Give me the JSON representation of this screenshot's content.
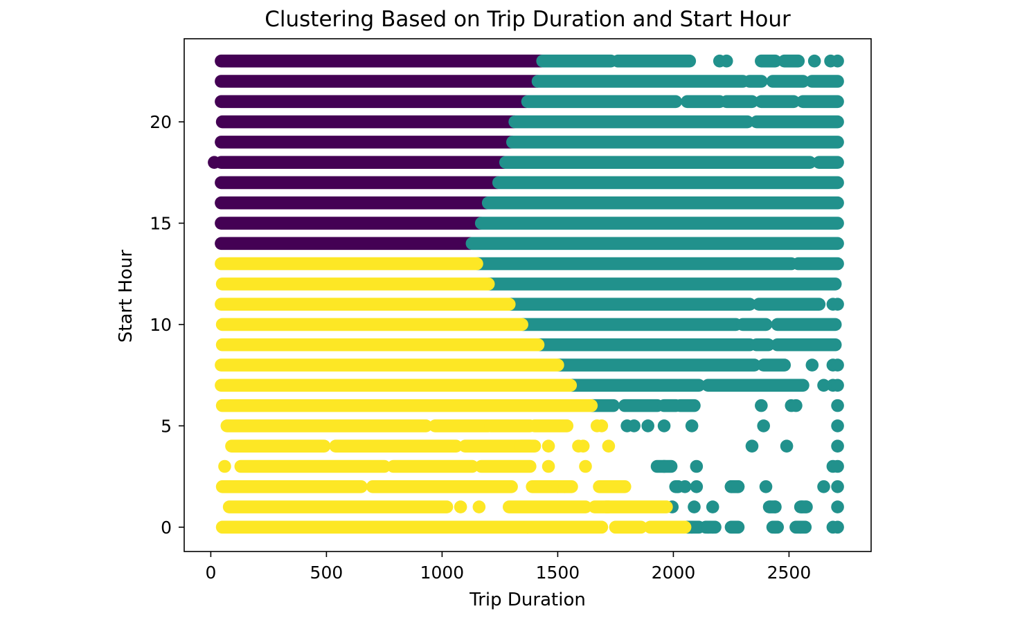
{
  "chart_data": {
    "type": "scatter",
    "title": "Clustering Based on Trip Duration and Start Hour",
    "xlabel": "Trip Duration",
    "ylabel": "Start Hour",
    "xlim": [
      -115,
      2855
    ],
    "ylim": [
      -1.2,
      24.1
    ],
    "xticks": [
      0,
      500,
      1000,
      1500,
      2000,
      2500
    ],
    "yticks": [
      0,
      5,
      10,
      15,
      20
    ],
    "grid": false,
    "legend": "none",
    "colors": {
      "cluster_0": "#440154",
      "cluster_1": "#21918c",
      "cluster_2": "#fde725"
    },
    "series": [
      {
        "cluster": "cluster_0",
        "color": "#440154",
        "segments": [
          {
            "hour": 14,
            "from": 45,
            "to": 1125
          },
          {
            "hour": 15,
            "from": 45,
            "to": 1165
          },
          {
            "hour": 16,
            "from": 45,
            "to": 1195
          },
          {
            "hour": 17,
            "from": 45,
            "to": 1240
          },
          {
            "hour": 18,
            "from": 45,
            "to": 1270
          },
          {
            "hour": 19,
            "from": 45,
            "to": 1300
          },
          {
            "hour": 20,
            "from": 50,
            "to": 1310
          },
          {
            "hour": 21,
            "from": 45,
            "to": 1365
          },
          {
            "hour": 22,
            "from": 45,
            "to": 1410
          },
          {
            "hour": 23,
            "from": 45,
            "to": 1430
          }
        ],
        "points": [
          {
            "x": 15,
            "y": 18
          }
        ]
      },
      {
        "cluster": "cluster_1",
        "color": "#21918c",
        "segments": [
          {
            "hour": 0,
            "from": 2060,
            "to": 2110
          },
          {
            "hour": 0,
            "from": 2140,
            "to": 2180
          },
          {
            "hour": 0,
            "from": 2250,
            "to": 2280
          },
          {
            "hour": 0,
            "from": 2430,
            "to": 2450
          },
          {
            "hour": 0,
            "from": 2530,
            "to": 2570
          },
          {
            "hour": 1,
            "from": 2420,
            "to": 2440
          },
          {
            "hour": 1,
            "from": 2550,
            "to": 2570
          },
          {
            "hour": 2,
            "from": 2010,
            "to": 2020
          },
          {
            "hour": 2,
            "from": 2250,
            "to": 2280
          },
          {
            "hour": 3,
            "from": 1930,
            "to": 1990
          },
          {
            "hour": 6,
            "from": 1650,
            "to": 1740
          },
          {
            "hour": 6,
            "from": 1790,
            "to": 1930
          },
          {
            "hour": 6,
            "from": 1960,
            "to": 2010
          },
          {
            "hour": 6,
            "from": 2030,
            "to": 2090
          },
          {
            "hour": 7,
            "from": 1560,
            "to": 2110
          },
          {
            "hour": 7,
            "from": 2150,
            "to": 2560
          },
          {
            "hour": 8,
            "from": 1505,
            "to": 2350
          },
          {
            "hour": 8,
            "from": 2390,
            "to": 2480
          },
          {
            "hour": 9,
            "from": 1420,
            "to": 2330
          },
          {
            "hour": 9,
            "from": 2360,
            "to": 2410
          },
          {
            "hour": 9,
            "from": 2450,
            "to": 2700
          },
          {
            "hour": 10,
            "from": 1350,
            "to": 2270
          },
          {
            "hour": 10,
            "from": 2300,
            "to": 2400
          },
          {
            "hour": 10,
            "from": 2450,
            "to": 2700
          },
          {
            "hour": 11,
            "from": 1295,
            "to": 2330
          },
          {
            "hour": 11,
            "from": 2370,
            "to": 2630
          },
          {
            "hour": 12,
            "from": 1205,
            "to": 2700
          },
          {
            "hour": 13,
            "from": 1155,
            "to": 2510
          },
          {
            "hour": 13,
            "from": 2540,
            "to": 2710
          },
          {
            "hour": 14,
            "from": 1130,
            "to": 2710
          },
          {
            "hour": 15,
            "from": 1170,
            "to": 2710
          },
          {
            "hour": 16,
            "from": 1200,
            "to": 2710
          },
          {
            "hour": 17,
            "from": 1245,
            "to": 2710
          },
          {
            "hour": 18,
            "from": 1275,
            "to": 2590
          },
          {
            "hour": 18,
            "from": 2630,
            "to": 2710
          },
          {
            "hour": 19,
            "from": 1305,
            "to": 2710
          },
          {
            "hour": 20,
            "from": 1315,
            "to": 2320
          },
          {
            "hour": 20,
            "from": 2360,
            "to": 2710
          },
          {
            "hour": 21,
            "from": 1370,
            "to": 2010
          },
          {
            "hour": 21,
            "from": 2060,
            "to": 2200
          },
          {
            "hour": 21,
            "from": 2230,
            "to": 2340
          },
          {
            "hour": 21,
            "from": 2380,
            "to": 2520
          },
          {
            "hour": 21,
            "from": 2560,
            "to": 2710
          },
          {
            "hour": 22,
            "from": 1415,
            "to": 2300
          },
          {
            "hour": 22,
            "from": 2330,
            "to": 2380
          },
          {
            "hour": 22,
            "from": 2430,
            "to": 2560
          },
          {
            "hour": 22,
            "from": 2600,
            "to": 2710
          },
          {
            "hour": 23,
            "from": 1435,
            "to": 1730
          },
          {
            "hour": 23,
            "from": 1760,
            "to": 2070
          },
          {
            "hour": 23,
            "from": 2380,
            "to": 2440
          },
          {
            "hour": 23,
            "from": 2480,
            "to": 2540
          }
        ],
        "points": [
          {
            "x": 2080,
            "y": 0
          },
          {
            "x": 2150,
            "y": 0
          },
          {
            "x": 2170,
            "y": 0
          },
          {
            "x": 2440,
            "y": 0
          },
          {
            "x": 2550,
            "y": 0
          },
          {
            "x": 2690,
            "y": 0
          },
          {
            "x": 2710,
            "y": 0
          },
          {
            "x": 1995,
            "y": 1
          },
          {
            "x": 2090,
            "y": 1
          },
          {
            "x": 2170,
            "y": 1
          },
          {
            "x": 2415,
            "y": 1
          },
          {
            "x": 2440,
            "y": 1
          },
          {
            "x": 2555,
            "y": 1
          },
          {
            "x": 2575,
            "y": 1
          },
          {
            "x": 2710,
            "y": 1
          },
          {
            "x": 2020,
            "y": 2
          },
          {
            "x": 2050,
            "y": 2
          },
          {
            "x": 2100,
            "y": 2
          },
          {
            "x": 2250,
            "y": 2
          },
          {
            "x": 2280,
            "y": 2
          },
          {
            "x": 2400,
            "y": 2
          },
          {
            "x": 2650,
            "y": 2
          },
          {
            "x": 2710,
            "y": 2
          },
          {
            "x": 1960,
            "y": 3
          },
          {
            "x": 2100,
            "y": 3
          },
          {
            "x": 2690,
            "y": 3
          },
          {
            "x": 2710,
            "y": 3
          },
          {
            "x": 2340,
            "y": 4
          },
          {
            "x": 2490,
            "y": 4
          },
          {
            "x": 2710,
            "y": 4
          },
          {
            "x": 1800,
            "y": 5
          },
          {
            "x": 1830,
            "y": 5
          },
          {
            "x": 1890,
            "y": 5
          },
          {
            "x": 1960,
            "y": 5
          },
          {
            "x": 2080,
            "y": 5
          },
          {
            "x": 2390,
            "y": 5
          },
          {
            "x": 2710,
            "y": 5
          },
          {
            "x": 2380,
            "y": 6
          },
          {
            "x": 2510,
            "y": 6
          },
          {
            "x": 2530,
            "y": 6
          },
          {
            "x": 2710,
            "y": 6
          },
          {
            "x": 2650,
            "y": 7
          },
          {
            "x": 2690,
            "y": 7
          },
          {
            "x": 2710,
            "y": 7
          },
          {
            "x": 2600,
            "y": 8
          },
          {
            "x": 2690,
            "y": 8
          },
          {
            "x": 2710,
            "y": 8
          },
          {
            "x": 2690,
            "y": 11
          },
          {
            "x": 2710,
            "y": 11
          },
          {
            "x": 2610,
            "y": 23
          },
          {
            "x": 2680,
            "y": 23
          },
          {
            "x": 2710,
            "y": 23
          },
          {
            "x": 2200,
            "y": 23
          },
          {
            "x": 2230,
            "y": 23
          }
        ]
      },
      {
        "cluster": "cluster_2",
        "color": "#fde725",
        "segments": [
          {
            "hour": 0,
            "from": 50,
            "to": 1690
          },
          {
            "hour": 0,
            "from": 1750,
            "to": 1860
          },
          {
            "hour": 0,
            "from": 1900,
            "to": 2050
          },
          {
            "hour": 1,
            "from": 80,
            "to": 1020
          },
          {
            "hour": 1,
            "from": 1290,
            "to": 1620
          },
          {
            "hour": 1,
            "from": 1660,
            "to": 1720
          },
          {
            "hour": 1,
            "from": 1710,
            "to": 1970
          },
          {
            "hour": 2,
            "from": 50,
            "to": 650
          },
          {
            "hour": 2,
            "from": 700,
            "to": 1300
          },
          {
            "hour": 2,
            "from": 1390,
            "to": 1560
          },
          {
            "hour": 2,
            "from": 1680,
            "to": 1790
          },
          {
            "hour": 3,
            "from": 130,
            "to": 750
          },
          {
            "hour": 3,
            "from": 790,
            "to": 1130
          },
          {
            "hour": 3,
            "from": 1170,
            "to": 1380
          },
          {
            "hour": 4,
            "from": 90,
            "to": 490
          },
          {
            "hour": 4,
            "from": 540,
            "to": 1060
          },
          {
            "hour": 4,
            "from": 1100,
            "to": 1380
          },
          {
            "hour": 4,
            "from": 1340,
            "to": 1400
          },
          {
            "hour": 5,
            "from": 70,
            "to": 930
          },
          {
            "hour": 5,
            "from": 970,
            "to": 1200
          },
          {
            "hour": 5,
            "from": 1210,
            "to": 1380
          },
          {
            "hour": 5,
            "from": 1400,
            "to": 1540
          },
          {
            "hour": 6,
            "from": 50,
            "to": 1645
          },
          {
            "hour": 7,
            "from": 45,
            "to": 1555
          },
          {
            "hour": 8,
            "from": 45,
            "to": 1500
          },
          {
            "hour": 9,
            "from": 50,
            "to": 1415
          },
          {
            "hour": 10,
            "from": 50,
            "to": 1345
          },
          {
            "hour": 11,
            "from": 45,
            "to": 1290
          },
          {
            "hour": 12,
            "from": 50,
            "to": 1200
          },
          {
            "hour": 13,
            "from": 45,
            "to": 1150
          }
        ],
        "points": [
          {
            "x": 1370,
            "y": 0
          },
          {
            "x": 1080,
            "y": 1
          },
          {
            "x": 1160,
            "y": 1
          },
          {
            "x": 60,
            "y": 3
          },
          {
            "x": 1460,
            "y": 3
          },
          {
            "x": 1620,
            "y": 3
          },
          {
            "x": 1460,
            "y": 4
          },
          {
            "x": 1590,
            "y": 4
          },
          {
            "x": 1610,
            "y": 4
          },
          {
            "x": 1720,
            "y": 4
          },
          {
            "x": 1670,
            "y": 5
          },
          {
            "x": 1690,
            "y": 5
          },
          {
            "x": 1500,
            "y": 2
          },
          {
            "x": 1530,
            "y": 2
          }
        ]
      }
    ]
  }
}
